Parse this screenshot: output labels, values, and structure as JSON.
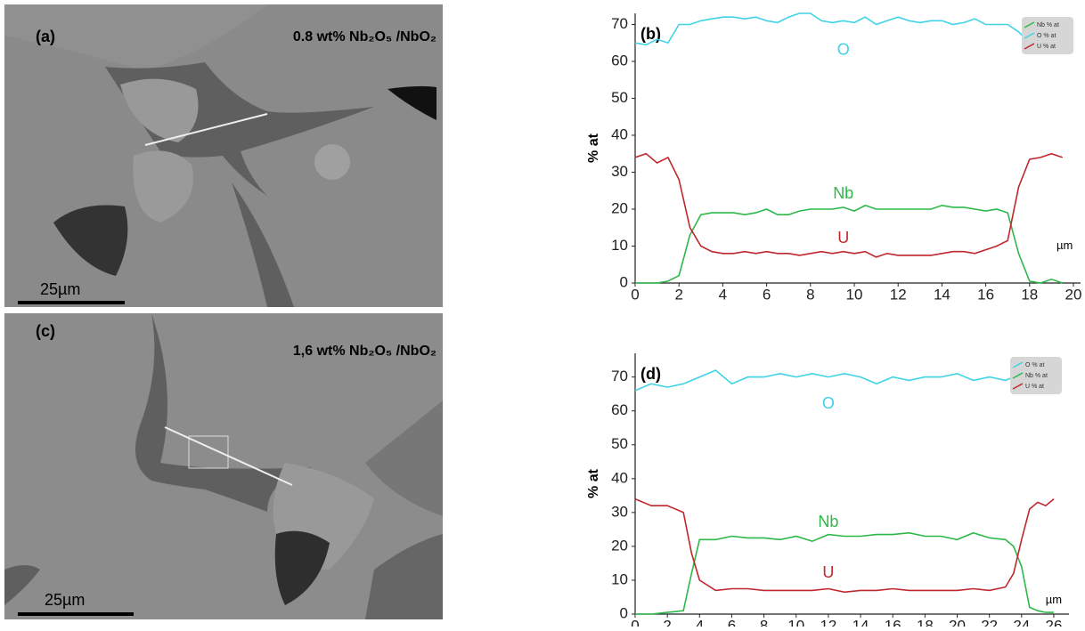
{
  "panels": [
    {
      "label": "(a)",
      "caption": "0.8 wt% Nb₂O₅ /NbO₂",
      "scale_bar": "25µm"
    },
    {
      "label": "(c)",
      "caption": "1,6 wt% Nb₂O₅ /NbO₂",
      "scale_bar": "25µm"
    }
  ],
  "chart_data": [
    {
      "type": "line",
      "title": "(b)",
      "ylabel": "% at",
      "x_unit": "µm",
      "annotations": [
        "O",
        "Nb",
        "U"
      ],
      "x": [
        0,
        0.5,
        1,
        1.5,
        2,
        2.5,
        3,
        3.5,
        4,
        4.5,
        5,
        5.5,
        6,
        6.5,
        7,
        7.5,
        8,
        8.5,
        9,
        9.5,
        10,
        10.5,
        11,
        11.5,
        12,
        12.5,
        13,
        13.5,
        14,
        14.5,
        15,
        15.5,
        16,
        16.5,
        17,
        17.5,
        18,
        18.5,
        19,
        19.5
      ],
      "series": [
        {
          "name": "Nb % at",
          "color": "#2db84a",
          "values": [
            0,
            0,
            0,
            0.5,
            2,
            13,
            18.5,
            19,
            19,
            19,
            18.5,
            19,
            20,
            18.5,
            18.5,
            19.5,
            20,
            20,
            20,
            20.5,
            19.5,
            21,
            20,
            20,
            20,
            20,
            20,
            20,
            21,
            20.5,
            20.5,
            20,
            19.5,
            20,
            19,
            8,
            0.5,
            0,
            1,
            0
          ]
        },
        {
          "name": "O % at",
          "color": "#3fd3e6",
          "values": [
            65,
            64.5,
            66,
            65,
            70,
            70,
            71,
            71.5,
            72,
            72,
            71.5,
            72,
            71,
            70.5,
            72,
            73,
            73,
            71,
            70.5,
            71,
            70.5,
            72,
            70,
            71,
            72,
            71,
            70.5,
            71,
            71,
            70,
            70.5,
            71.5,
            70,
            70,
            70,
            68,
            65,
            66,
            64.5,
            65
          ]
        },
        {
          "name": "U % at",
          "color": "#c0272d",
          "values": [
            34,
            35,
            32.5,
            34,
            28,
            15,
            10,
            8.5,
            8,
            8,
            8.5,
            8,
            8.5,
            8,
            8,
            7.5,
            8,
            8.5,
            8,
            8.5,
            8,
            8.5,
            7,
            8,
            7.5,
            7.5,
            7.5,
            7.5,
            8,
            8.5,
            8.5,
            8,
            9,
            10,
            11.5,
            26,
            33.5,
            34,
            35,
            34
          ]
        }
      ],
      "xlim": [
        0,
        20
      ],
      "xticks": [
        0,
        2,
        4,
        6,
        8,
        10,
        12,
        14,
        16,
        18,
        20
      ],
      "ylim": [
        0,
        73
      ],
      "yticks": [
        0,
        10,
        20,
        30,
        40,
        50,
        60,
        70
      ],
      "legend": "upper right"
    },
    {
      "type": "line",
      "title": "(d)",
      "ylabel": "% at",
      "x_unit": "µm",
      "annotations": [
        "O",
        "Nb",
        "U"
      ],
      "x": [
        0,
        1,
        2,
        3,
        3.5,
        4,
        5,
        6,
        7,
        8,
        9,
        10,
        11,
        12,
        13,
        14,
        15,
        16,
        17,
        18,
        19,
        20,
        21,
        22,
        23,
        23.5,
        24,
        24.5,
        25,
        25.5,
        26
      ],
      "series": [
        {
          "name": "O % at",
          "color": "#3fd3e6",
          "values": [
            66,
            68,
            67,
            68,
            69,
            70,
            72,
            68,
            70,
            70,
            71,
            70,
            71,
            70,
            71,
            70,
            68,
            70,
            69,
            70,
            70,
            71,
            69,
            70,
            69,
            70,
            68,
            67,
            66,
            67,
            65
          ]
        },
        {
          "name": "Nb % at",
          "color": "#2db84a",
          "values": [
            0,
            0,
            0.5,
            1,
            12,
            22,
            22,
            23,
            22.5,
            22.5,
            22,
            23,
            21.5,
            23.5,
            23,
            23,
            23.5,
            23.5,
            24,
            23,
            23,
            22,
            24,
            22.5,
            22,
            20,
            14,
            2,
            1,
            0.5,
            0.5
          ]
        },
        {
          "name": "U % at",
          "color": "#c0272d",
          "values": [
            34,
            32,
            32,
            30,
            18,
            10,
            7,
            7.5,
            7.5,
            7,
            7,
            7,
            7,
            7.5,
            6.5,
            7,
            7,
            7.5,
            7,
            7,
            7,
            7,
            7.5,
            7,
            8,
            12,
            22,
            31,
            33,
            32,
            34
          ]
        }
      ],
      "xlim": [
        0,
        26.5
      ],
      "xticks": [
        0,
        2,
        4,
        6,
        8,
        10,
        12,
        14,
        16,
        18,
        20,
        22,
        24,
        26
      ],
      "ylim": [
        0,
        77
      ],
      "yticks": [
        0,
        10,
        20,
        30,
        40,
        50,
        60,
        70
      ],
      "legend": "upper right"
    }
  ]
}
